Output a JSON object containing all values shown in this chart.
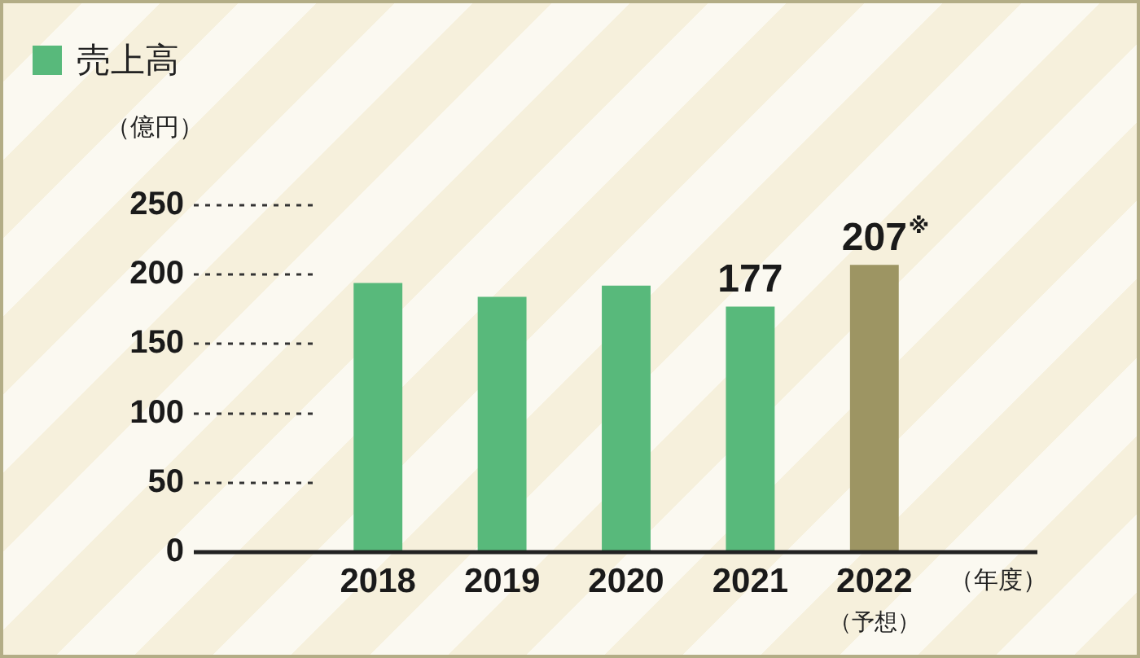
{
  "chart_data": {
    "type": "bar",
    "legend": "top left",
    "ylabel": "（億円）",
    "xlabel": "（年度）",
    "categories": [
      "2018",
      "2019",
      "2020",
      "2021",
      "2022\n（予想）"
    ],
    "series": [
      {
        "name": "売上高",
        "color": "#58b97b",
        "colors": [
          "#58b97b",
          "#58b97b",
          "#58b97b",
          "#58b97b",
          "#9d9563"
        ],
        "values": [
          194,
          184,
          192,
          177,
          207
        ],
        "value_labels": [
          null,
          null,
          null,
          "177",
          "207$^{※}$"
        ]
      }
    ],
    "ylim": [
      0,
      250
    ],
    "yticks": [
      0,
      50,
      100,
      150,
      200,
      250
    ]
  }
}
